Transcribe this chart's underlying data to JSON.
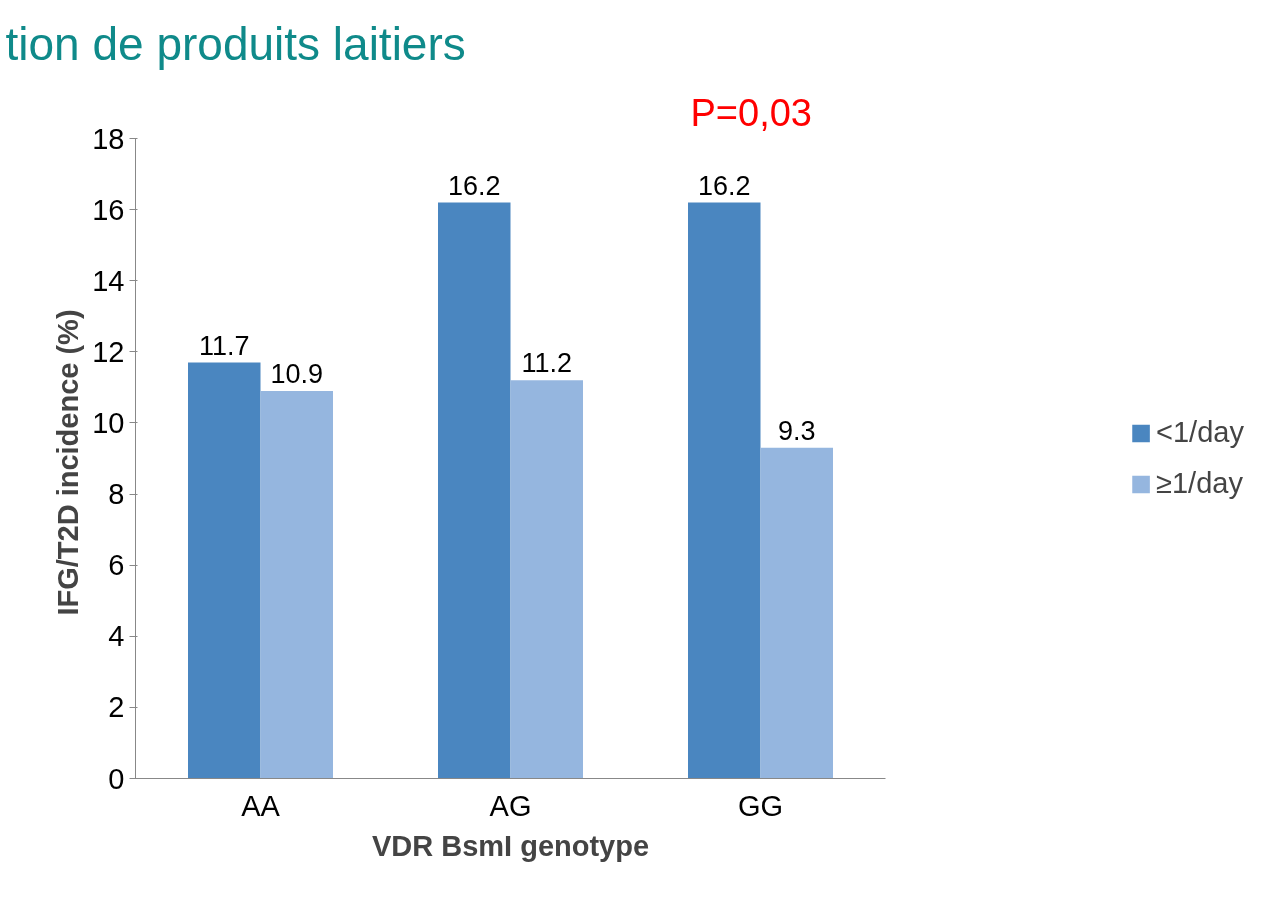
{
  "chart_data": {
    "type": "bar",
    "title": "tion de produits laitiers",
    "xlabel": "VDR BsmI genotype",
    "ylabel": "IFG/T2D  incidence (%)",
    "categories": [
      "AA",
      "AG",
      "GG"
    ],
    "series": [
      {
        "name": "<1/day",
        "color": "#4a86c0",
        "values": [
          11.7,
          16.2,
          16.2
        ]
      },
      {
        "name": "≥1/day",
        "color": "#95b6df",
        "values": [
          10.9,
          11.2,
          9.3
        ]
      }
    ],
    "ylim": [
      0,
      18
    ],
    "yticks": [
      0,
      2,
      4,
      6,
      8,
      10,
      12,
      14,
      16,
      18
    ],
    "grid": false,
    "legend": "right",
    "data_labels": true,
    "annotations": [
      "P=0,03"
    ]
  }
}
